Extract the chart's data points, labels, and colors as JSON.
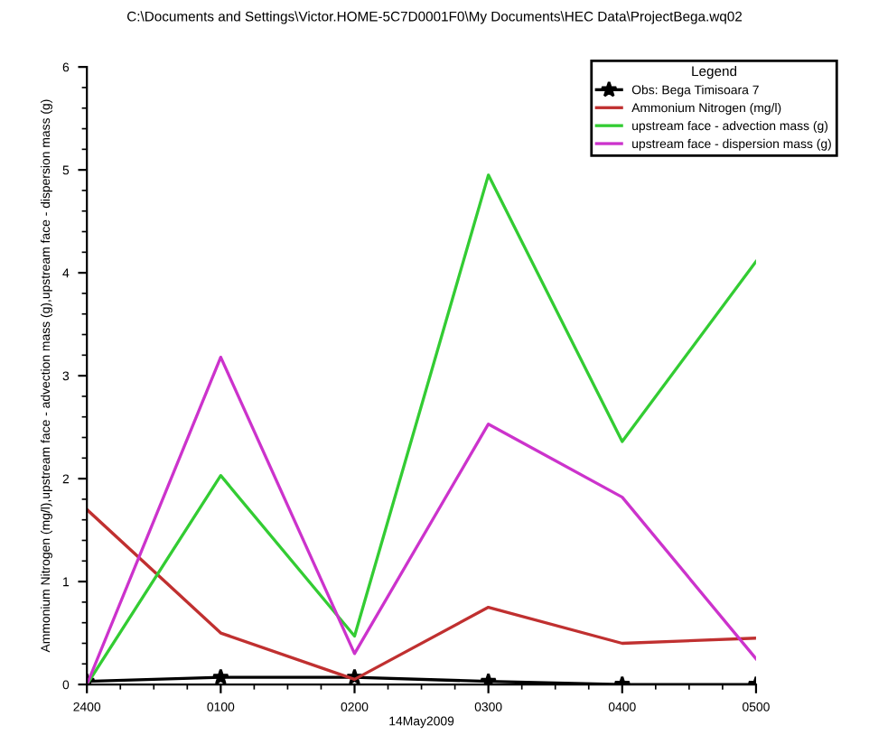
{
  "chart_data": {
    "type": "line",
    "title": "C:\\Documents and Settings\\Victor.HOME-5C7D0001F0\\My Documents\\HEC Data\\ProjectBega.wq02",
    "xlabel": "14May2009",
    "ylabel": "Ammonium Nitrogen (mg/l),upstream face - advection mass (g),upstream face - dispersion mass (g)",
    "legend_title": "Legend",
    "categories": [
      "2400",
      "0100",
      "0200",
      "0300",
      "0400",
      "0500"
    ],
    "ylim": [
      0,
      6
    ],
    "yticks": [
      0,
      1,
      2,
      3,
      4,
      5,
      6
    ],
    "grid": false,
    "legend": "top right",
    "series": [
      {
        "name": "Obs: Bega Timisoara 7",
        "color": "#000000",
        "marker": "star",
        "values": [
          0.03,
          0.07,
          0.07,
          0.03,
          0.0,
          0.0
        ]
      },
      {
        "name": "Ammonium Nitrogen (mg/l)",
        "color": "#c03030",
        "values": [
          1.7,
          0.5,
          0.05,
          0.75,
          0.4,
          0.45
        ]
      },
      {
        "name": "upstream face - advection mass (g)",
        "color": "#33cc33",
        "values": [
          0.0,
          2.03,
          0.47,
          4.95,
          2.36,
          4.11
        ]
      },
      {
        "name": "upstream face - dispersion mass (g)",
        "color": "#cc33cc",
        "values": [
          0.0,
          3.18,
          0.3,
          2.53,
          1.82,
          0.25
        ]
      }
    ]
  }
}
